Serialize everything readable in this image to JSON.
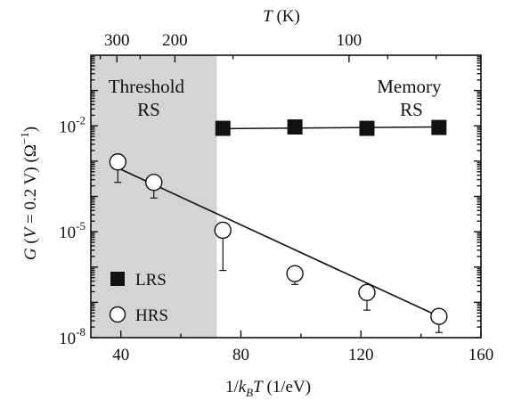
{
  "chart_data": {
    "type": "scatter",
    "title": "",
    "xlabel": "1/k_BT (1/eV)",
    "xlabel_parts": {
      "pre": "1/",
      "k": "k",
      "sub": "B",
      "T": "T",
      "post": " (1/eV)"
    },
    "ylabel": "G (V = 0.2 V) (Ω⁻¹)",
    "ylabel_parts": {
      "G": "G",
      "p1": " (",
      "V": "V",
      "p2": " = 0.2 V) (Ω",
      "sup": "−1",
      "p3": ")"
    },
    "top_xlabel": "T (K)",
    "top_xlabel_parts": {
      "T": "T",
      "post": " (K)"
    },
    "x_axis": {
      "lim": [
        30,
        160
      ],
      "ticks": [
        40,
        80,
        120,
        160
      ],
      "tick_labels": [
        "40",
        "80",
        "120",
        "160"
      ]
    },
    "y_axis": {
      "scale": "log",
      "lim": [
        1e-08,
        1
      ],
      "ticks": [
        1e-08,
        1e-05,
        0.01
      ],
      "tick_labels": [
        {
          "base": "10",
          "exp": "-8"
        },
        {
          "base": "10",
          "exp": "-5"
        },
        {
          "base": "10",
          "exp": "-2"
        }
      ]
    },
    "top_axis": {
      "ticks_K": [
        300,
        200,
        100
      ],
      "tick_labels": [
        "300",
        "200",
        "100"
      ]
    },
    "shaded_region": {
      "x": [
        30,
        72
      ],
      "color": "#d4d4d6"
    },
    "annotations": [
      {
        "lines": [
          "Threshold",
          "RS"
        ],
        "region": "threshold"
      },
      {
        "lines": [
          "Memory",
          "RS"
        ],
        "region": "memory"
      }
    ],
    "series": [
      {
        "name": "LRS",
        "marker": "filled-square",
        "color": "#111111",
        "points": [
          {
            "x": 74,
            "y": 0.0085
          },
          {
            "x": 98,
            "y": 0.0093
          },
          {
            "x": 122,
            "y": 0.0085
          },
          {
            "x": 146,
            "y": 0.009
          }
        ],
        "fit": {
          "x": [
            72,
            146
          ],
          "y": [
            0.0083,
            0.0093
          ]
        }
      },
      {
        "name": "HRS",
        "marker": "open-circle",
        "color": "#111111",
        "points": [
          {
            "x": 39,
            "y": 0.00095,
            "err_low": 0.00025
          },
          {
            "x": 51,
            "y": 0.00025,
            "err_low": 9e-05
          },
          {
            "x": 74,
            "y": 1.1e-05,
            "err_low": 8e-07,
            "err_high": 1.8e-05
          },
          {
            "x": 98,
            "y": 6.5e-07,
            "err_low": 3.2e-07,
            "err_high": 9e-07
          },
          {
            "x": 122,
            "y": 1.9e-07,
            "err_low": 6e-08,
            "err_high": 2.6e-07
          },
          {
            "x": 146,
            "y": 4e-08,
            "err_low": 1.4e-08
          }
        ],
        "fit": {
          "x": [
            38,
            146
          ],
          "y": [
            0.0007,
            4e-08
          ]
        }
      }
    ],
    "legend": {
      "placement": "bottom-left",
      "entries": [
        {
          "label": "LRS",
          "marker": "filled-square"
        },
        {
          "label": "HRS",
          "marker": "open-circle"
        }
      ]
    }
  }
}
